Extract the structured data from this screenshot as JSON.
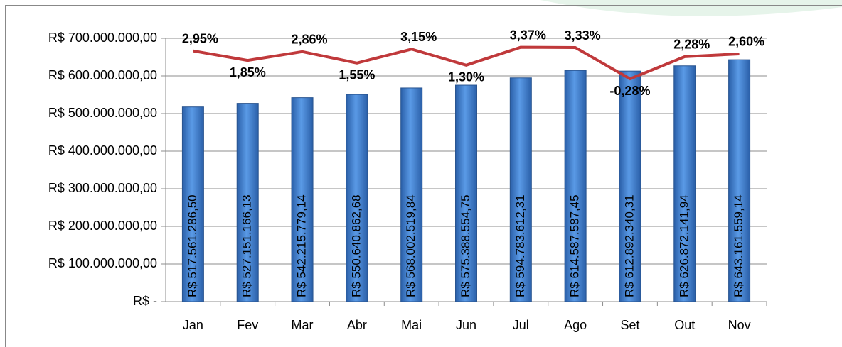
{
  "chart_data": {
    "type": "bar",
    "categories": [
      "Jan",
      "Fev",
      "Mar",
      "Abr",
      "Mai",
      "Jun",
      "Jul",
      "Ago",
      "Set",
      "Out",
      "Nov"
    ],
    "series": [
      {
        "type": "bar",
        "color": "#3a7ad0",
        "values": [
          517561286.5,
          527151166.13,
          542215779.14,
          550640862.68,
          568002519.84,
          575388554.75,
          594783612.31,
          614587587.45,
          612892340.31,
          626872141.94,
          643161559.14
        ],
        "value_labels": [
          "R$ 517.561.286,50",
          "R$ 527.151.166,13",
          "R$ 542.215.779,14",
          "R$ 550.640.862,68",
          "R$ 568.002.519,84",
          "R$ 575.388.554,75",
          "R$ 594.783.612,31",
          "R$ 614.587.587,45",
          "R$ 612.892.340,31",
          "R$ 626.872.141,94",
          "R$ 643.161.559,14"
        ]
      },
      {
        "type": "line",
        "color": "#c0393b",
        "axis": "y2",
        "values": [
          2.95,
          1.85,
          2.86,
          1.55,
          3.15,
          1.3,
          3.37,
          3.33,
          -0.28,
          2.28,
          2.6
        ],
        "value_labels": [
          "2,95%",
          "1,85%",
          "2,86%",
          "1,55%",
          "3,15%",
          "1,30%",
          "3,37%",
          "3,33%",
          "-0,28%",
          "2,28%",
          "2,60%"
        ]
      }
    ],
    "ylim": [
      0,
      700000000
    ],
    "yticks": [
      {
        "value": 0,
        "label": "R$ -"
      },
      {
        "value": 100000000,
        "label": "R$ 100.000.000,00"
      },
      {
        "value": 200000000,
        "label": "R$ 200.000.000,00"
      },
      {
        "value": 300000000,
        "label": "R$ 300.000.000,00"
      },
      {
        "value": 400000000,
        "label": "R$ 400.000.000,00"
      },
      {
        "value": 500000000,
        "label": "R$ 500.000.000,00"
      },
      {
        "value": 600000000,
        "label": "R$ 600.000.000,00"
      },
      {
        "value": 700000000,
        "label": "R$ 700.000.000,00"
      }
    ],
    "y2lim": [
      -26,
      4.4
    ],
    "grid": true
  }
}
